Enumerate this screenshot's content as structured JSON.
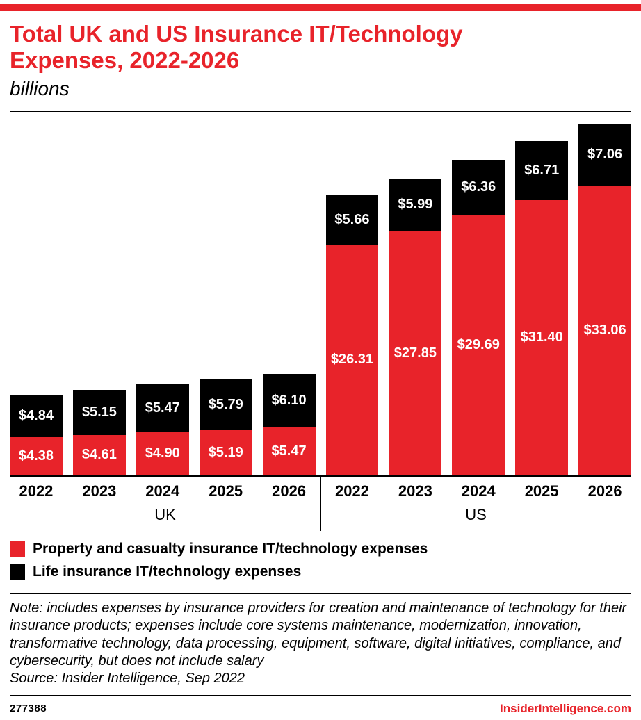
{
  "meta": {
    "chart_id": "277388",
    "brand": "InsiderIntelligence.com",
    "colors": {
      "accent_red": "#e8232a",
      "black": "#000000"
    }
  },
  "header": {
    "title": "Total UK and US Insurance IT/Technology Expenses, 2022-2026",
    "subtitle": "billions"
  },
  "legend": [
    {
      "label": "Property and casualty insurance IT/technology expenses",
      "color": "#e8232a"
    },
    {
      "label": "Life insurance IT/technology expenses",
      "color": "#000000"
    }
  ],
  "note": "Note: includes expenses by insurance providers for creation and maintenance of technology for their insurance products; expenses include core systems maintenance, modernization, innovation, transformative technology, data processing, equipment, software, digital initiatives, compliance, and cybersecurity, but does not include salary",
  "source": "Source: Insider Intelligence, Sep 2022",
  "chart_data": {
    "type": "bar",
    "stacked": true,
    "unit": "billions of USD",
    "value_prefix": "$",
    "legend_position": "bottom-left",
    "groups": [
      {
        "label": "UK",
        "categories": [
          "2022",
          "2023",
          "2024",
          "2025",
          "2026"
        ],
        "series": [
          {
            "name": "Property and casualty insurance IT/technology expenses",
            "color": "#e8232a",
            "values": [
              4.38,
              4.61,
              4.9,
              5.19,
              5.47
            ],
            "labels": [
              "$4.38",
              "$4.61",
              "$4.90",
              "$5.19",
              "$5.47"
            ]
          },
          {
            "name": "Life insurance IT/technology expenses",
            "color": "#000000",
            "values": [
              4.84,
              5.15,
              5.47,
              5.79,
              6.1
            ],
            "labels": [
              "$4.84",
              "$5.15",
              "$5.47",
              "$5.79",
              "$6.10"
            ]
          }
        ]
      },
      {
        "label": "US",
        "categories": [
          "2022",
          "2023",
          "2024",
          "2025",
          "2026"
        ],
        "series": [
          {
            "name": "Property and casualty insurance IT/technology expenses",
            "color": "#e8232a",
            "values": [
              26.31,
              27.85,
              29.69,
              31.4,
              33.06
            ],
            "labels": [
              "$26.31",
              "$27.85",
              "$29.69",
              "$31.40",
              "$33.06"
            ]
          },
          {
            "name": "Life insurance IT/technology expenses",
            "color": "#000000",
            "values": [
              5.66,
              5.99,
              6.36,
              6.71,
              7.06
            ],
            "labels": [
              "$5.66",
              "$5.99",
              "$6.36",
              "$6.71",
              "$7.06"
            ]
          }
        ]
      }
    ]
  }
}
